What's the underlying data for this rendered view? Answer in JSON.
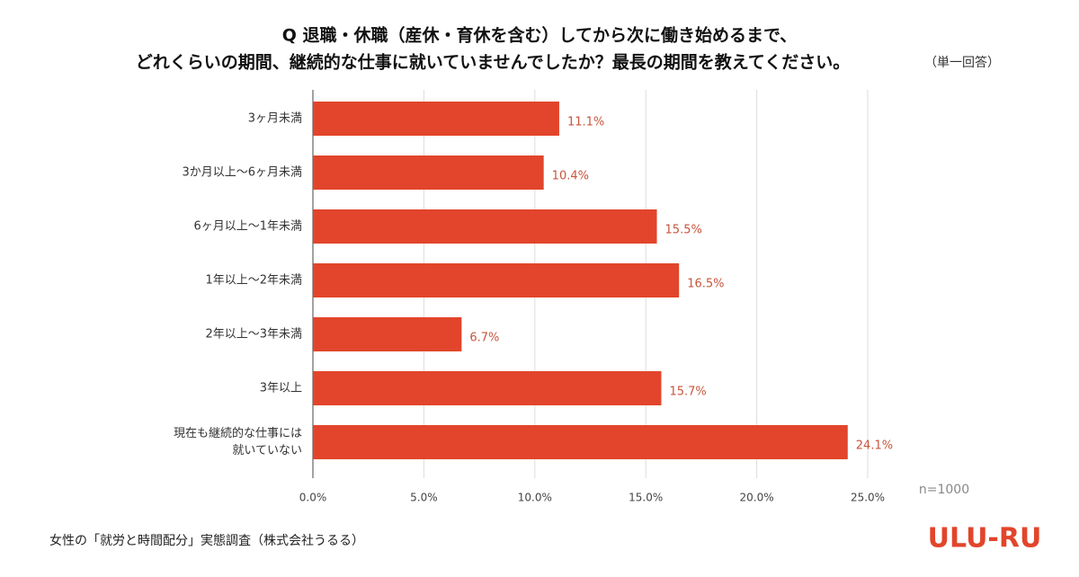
{
  "chart_data": {
    "type": "bar",
    "orientation": "horizontal",
    "title": [
      "Q 退職・休職（産休・育休を含む）してから次に働き始めるまで、",
      "どれくらいの期間、継続的な仕事に就いていませんでしたか？最長の期間を教えてください。"
    ],
    "subtitle": "（単一回答）",
    "categories": [
      "3ヶ月未満",
      "3か月以上～6ヶ月未満",
      "6ヶ月以上～1年未満",
      "1年以上～2年未満",
      "2年以上～3年未満",
      "3年以上",
      "現在も継続的な仕事には\n就いていない"
    ],
    "values": [
      11.1,
      10.4,
      15.5,
      16.5,
      6.7,
      15.7,
      24.1
    ],
    "value_labels": [
      "11.1%",
      "10.4%",
      "15.5%",
      "16.5%",
      "6.7%",
      "15.7%",
      "24.1%"
    ],
    "color": "#e2452b",
    "xlim": [
      0,
      25
    ],
    "xticks": [
      {
        "value": 0,
        "label": "0.0%"
      },
      {
        "value": 5,
        "label": "5.0%"
      },
      {
        "value": 10,
        "label": "10.0%"
      },
      {
        "value": 15,
        "label": "15.0%"
      },
      {
        "value": 20,
        "label": "20.0%"
      },
      {
        "value": 25,
        "label": "25.0%"
      }
    ],
    "grid": true,
    "note": "n=1000",
    "source": "女性の「就労と時間配分」実態調査（株式会社うるる）",
    "logo": "ULU-RU"
  }
}
